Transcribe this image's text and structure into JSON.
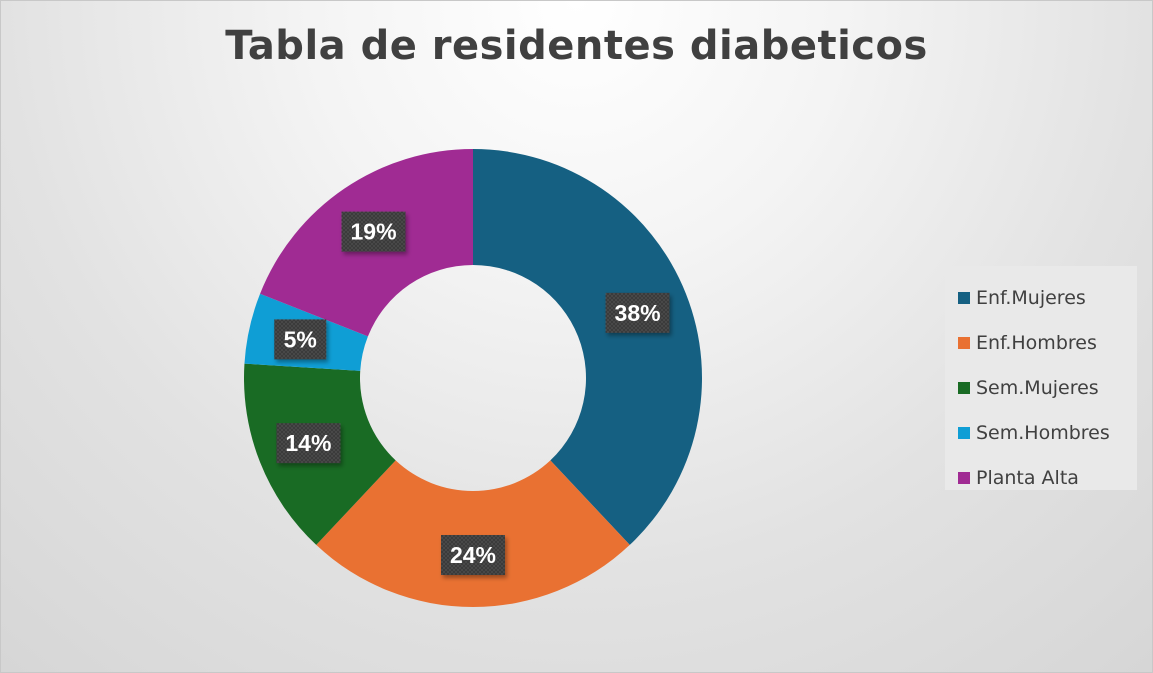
{
  "chart_data": {
    "type": "donut",
    "title": "Tabla de residentes diabeticos",
    "categories": [
      "Enf.Mujeres",
      "Enf.Hombres",
      "Sem.Mujeres",
      "Sem.Hombres",
      "Planta Alta"
    ],
    "values": [
      38,
      24,
      14,
      5,
      19
    ],
    "data_labels": [
      "38%",
      "24%",
      "14%",
      "5%",
      "19%"
    ],
    "colors": [
      "#156082",
      "#E97132",
      "#196B24",
      "#0F9ED5",
      "#A02B93"
    ],
    "legend_position": "right",
    "unit": "%"
  }
}
